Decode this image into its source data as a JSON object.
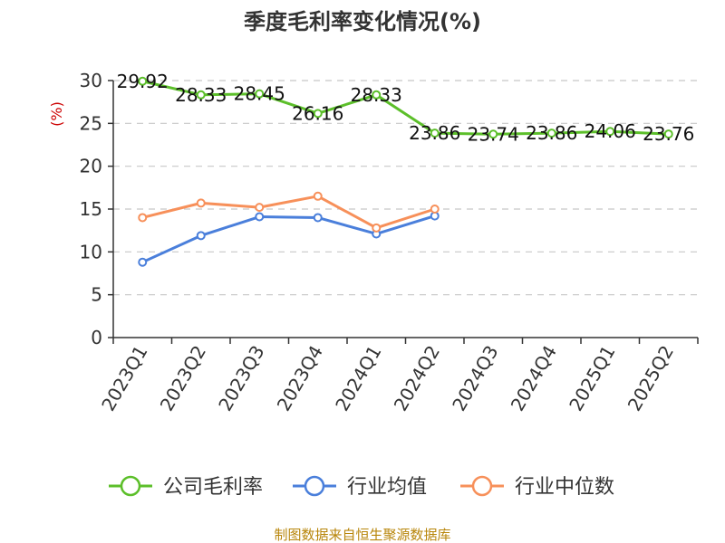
{
  "chart_data": {
    "type": "line",
    "title": "季度毛利率变化情况(%)",
    "ylabel": "(%)",
    "ylim": [
      0,
      30
    ],
    "yticks": [
      0,
      5,
      10,
      15,
      20,
      25,
      30
    ],
    "grid": true,
    "legend": "bottom",
    "categories": [
      "2023Q1",
      "2023Q2",
      "2023Q3",
      "2023Q4",
      "2024Q1",
      "2024Q2",
      "2024Q3",
      "2024Q4",
      "2025Q1",
      "2025Q2"
    ],
    "series": [
      {
        "name": "公司毛利率",
        "color": "#5cbf2a",
        "values": [
          29.92,
          28.33,
          28.45,
          26.16,
          28.33,
          23.86,
          23.74,
          23.86,
          24.06,
          23.76
        ],
        "labels": [
          "29.92",
          "28.33",
          "28.45",
          "26.16",
          "28.33",
          "23.86",
          "23.74",
          "23.86",
          "24.06",
          "23.76"
        ]
      },
      {
        "name": "行业均值",
        "color": "#4a7fdb",
        "values": [
          8.8,
          11.9,
          14.1,
          14.0,
          12.1,
          14.2,
          null,
          null,
          null,
          null
        ]
      },
      {
        "name": "行业中位数",
        "color": "#f7905a",
        "values": [
          14.0,
          15.7,
          15.2,
          16.5,
          12.8,
          15.0,
          null,
          null,
          null,
          null
        ]
      }
    ]
  },
  "source": "制图数据来自恒生聚源数据库"
}
